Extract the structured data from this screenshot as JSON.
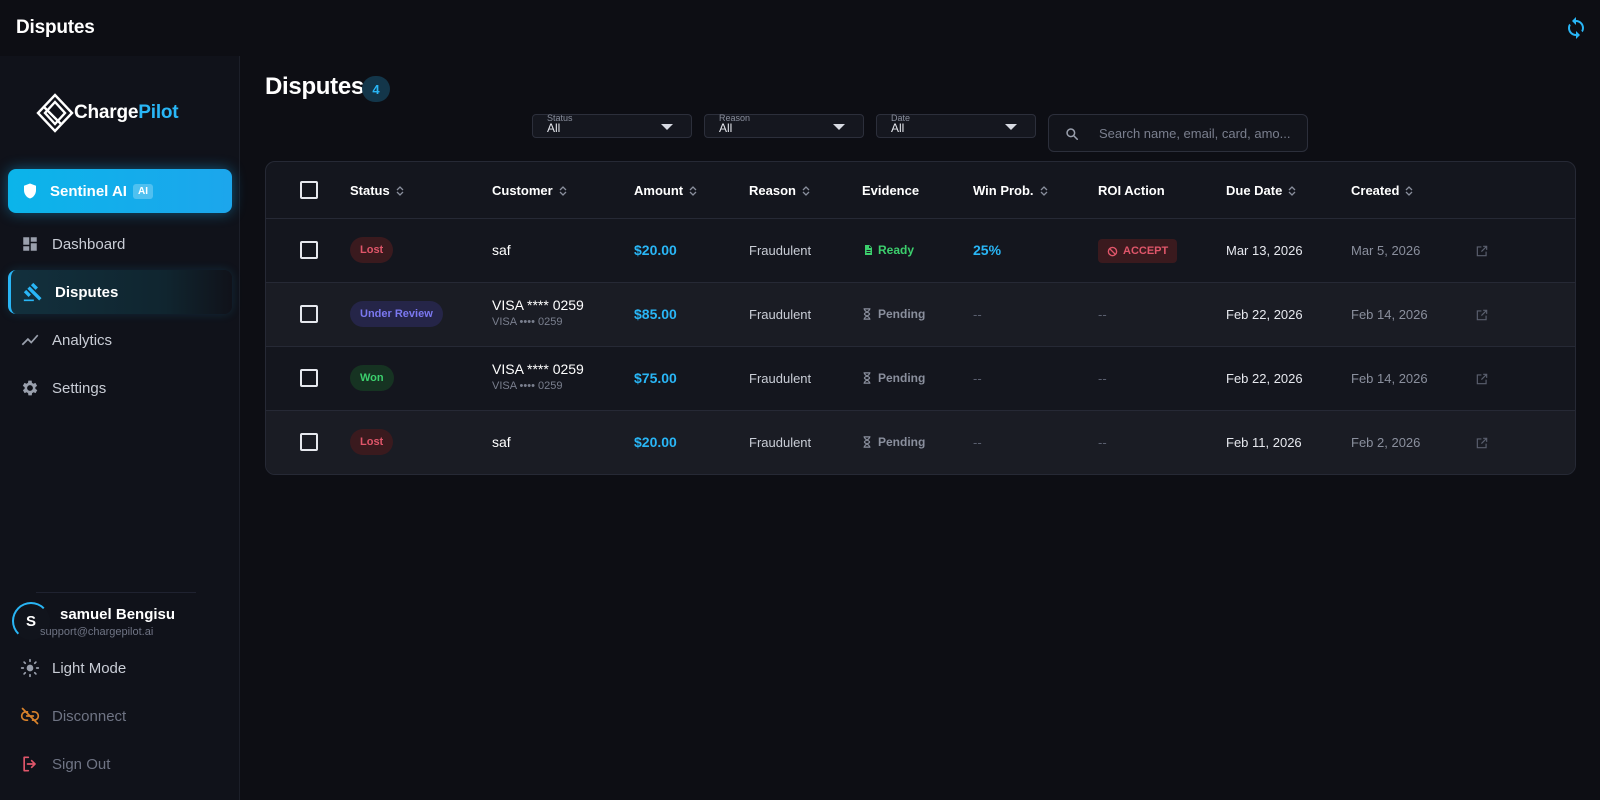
{
  "topbar": {
    "title": "Disputes"
  },
  "logo": {
    "brand_a": "Charge",
    "brand_b": "Pilot"
  },
  "nav": {
    "sentinel": {
      "label": "Sentinel AI",
      "badge": "AI"
    },
    "dashboard": "Dashboard",
    "disputes": "Disputes",
    "analytics": "Analytics",
    "settings": "Settings",
    "light_mode": "Light Mode",
    "disconnect": "Disconnect",
    "sign_out": "Sign Out"
  },
  "user": {
    "initial": "S",
    "name": "samuel Bengisu",
    "email": "support@chargepilot.ai"
  },
  "page": {
    "title": "Disputes",
    "count": "4"
  },
  "filters": {
    "status": {
      "label": "Status",
      "value": "All"
    },
    "reason": {
      "label": "Reason",
      "value": "All"
    },
    "date": {
      "label": "Date",
      "value": "All"
    }
  },
  "search": {
    "placeholder": "Search name, email, card, amo..."
  },
  "columns": {
    "status": "Status",
    "customer": "Customer",
    "amount": "Amount",
    "reason": "Reason",
    "evidence": "Evidence",
    "win_prob": "Win Prob.",
    "roi_action": "ROI Action",
    "due_date": "Due Date",
    "created": "Created"
  },
  "rows": [
    {
      "status": "Lost",
      "customer": "saf",
      "customer_sub": "",
      "amount": "$20.00",
      "reason": "Fraudulent",
      "evidence": "Ready",
      "win_prob": "25%",
      "roi_action": "ACCEPT",
      "due_date": "Mar 13, 2026",
      "created": "Mar 5, 2026"
    },
    {
      "status": "Under Review",
      "customer": "VISA **** 0259",
      "customer_sub": "VISA •••• 0259",
      "amount": "$85.00",
      "reason": "Fraudulent",
      "evidence": "Pending",
      "win_prob": "--",
      "roi_action": "--",
      "due_date": "Feb 22, 2026",
      "created": "Feb 14, 2026"
    },
    {
      "status": "Won",
      "customer": "VISA **** 0259",
      "customer_sub": "VISA •••• 0259",
      "amount": "$75.00",
      "reason": "Fraudulent",
      "evidence": "Pending",
      "win_prob": "--",
      "roi_action": "--",
      "due_date": "Feb 22, 2026",
      "created": "Feb 14, 2026"
    },
    {
      "status": "Lost",
      "customer": "saf",
      "customer_sub": "",
      "amount": "$20.00",
      "reason": "Fraudulent",
      "evidence": "Pending",
      "win_prob": "--",
      "roi_action": "--",
      "due_date": "Feb 11, 2026",
      "created": "Feb 2, 2026"
    }
  ],
  "colors": {
    "accent": "#29b6f6",
    "lost": "#e0566a",
    "won": "#3ccf6d",
    "review": "#7b78f0"
  }
}
